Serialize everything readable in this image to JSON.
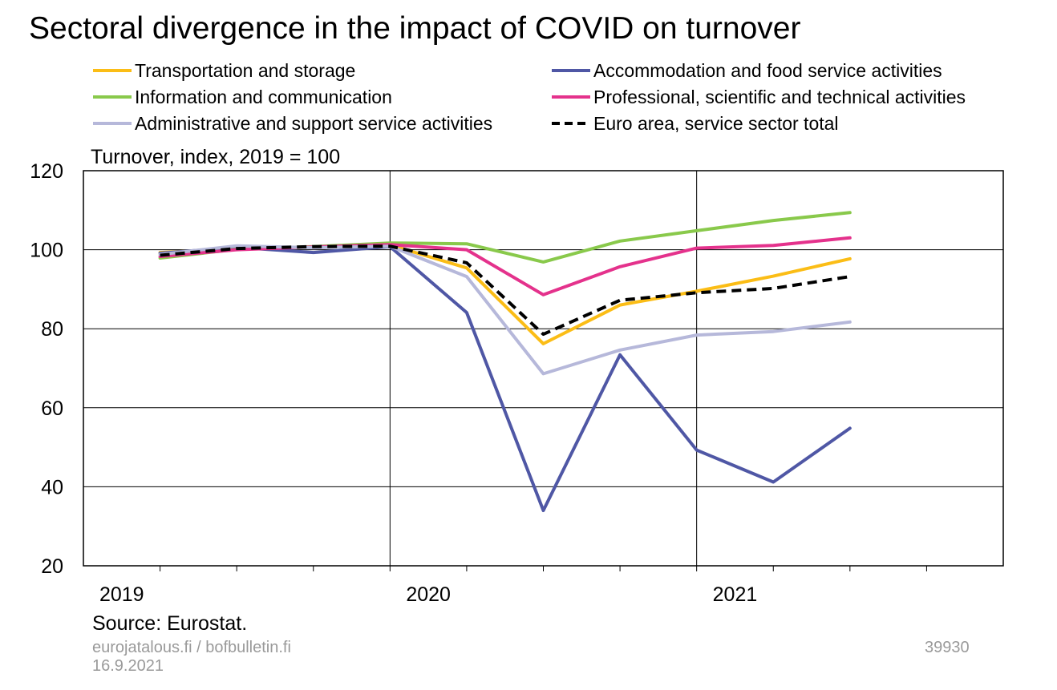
{
  "chart_data": {
    "type": "line",
    "title": "Sectoral divergence in the impact of COVID on turnover",
    "ylabel": "Turnover, index, 2019 = 100",
    "ylim": [
      20,
      120
    ],
    "yticks": [
      20,
      40,
      60,
      80,
      100,
      120
    ],
    "x": [
      "2019Q1",
      "2019Q2",
      "2019Q3",
      "2019Q4",
      "2020Q1",
      "2020Q2",
      "2020Q3",
      "2020Q4",
      "2021Q1",
      "2021Q2"
    ],
    "xtick_labels": [
      "2019",
      "2020",
      "2021"
    ],
    "grid": true,
    "legend_position": "top",
    "series": [
      {
        "name": "Transportation and storage",
        "color": "#fbbd16",
        "dashed": false,
        "values": [
          99.3,
          100.2,
          100.7,
          101.2,
          95.4,
          76.2,
          86.0,
          89.5,
          93.3,
          97.7
        ]
      },
      {
        "name": "Accommodation and food service activities",
        "color": "#4f57a5",
        "dashed": false,
        "values": [
          99.1,
          100.6,
          99.3,
          100.8,
          84.1,
          34.0,
          73.4,
          49.3,
          41.2,
          54.8
        ]
      },
      {
        "name": "Information and communication",
        "color": "#89c94b",
        "dashed": false,
        "values": [
          97.9,
          100.1,
          100.8,
          101.7,
          101.5,
          96.9,
          102.2,
          104.8,
          107.4,
          109.4
        ]
      },
      {
        "name": "Professional, scientific and technical activities",
        "color": "#e4328c",
        "dashed": false,
        "values": [
          98.3,
          100.0,
          100.7,
          101.3,
          100.0,
          88.6,
          95.7,
          100.4,
          101.1,
          103.0
        ]
      },
      {
        "name": "Administrative and support service activities",
        "color": "#b6b8da",
        "dashed": false,
        "values": [
          98.8,
          101.0,
          100.5,
          100.9,
          93.2,
          68.6,
          74.6,
          78.4,
          79.3,
          81.7
        ]
      },
      {
        "name": "Euro area, service sector total",
        "color": "#000000",
        "dashed": true,
        "values": [
          98.6,
          100.3,
          100.8,
          100.9,
          96.7,
          78.6,
          87.2,
          89.1,
          90.2,
          93.2
        ]
      }
    ]
  },
  "footer": {
    "source": "Source: Eurostat.",
    "site": "eurojatalous.fi / bofbulletin.fi",
    "date": "16.9.2021",
    "code": "39930"
  }
}
